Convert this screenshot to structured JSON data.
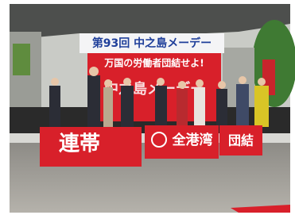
{
  "banner": {
    "title": "第93回 中之島メーデー",
    "slogan": "万国の労働者団結せよ!",
    "stage_text": "中之島メーデー"
  },
  "signs": {
    "left": "連帯",
    "center": "全港湾",
    "right": "団結"
  }
}
